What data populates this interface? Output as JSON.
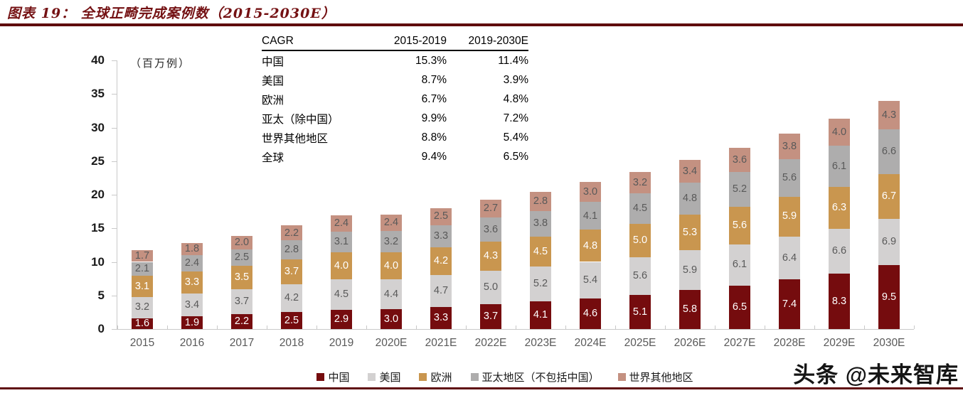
{
  "header": {
    "title": "图表 19：  全球正畸完成案例数（2015-2030E）",
    "accent_color": "#5f0b0d"
  },
  "chart_data": {
    "type": "bar",
    "stacked": true,
    "title": "全球正畸完成案例数（2015-2030E）",
    "unit_label": "（百万例）",
    "ylim": [
      0,
      40
    ],
    "yticks": [
      0,
      5,
      10,
      15,
      20,
      25,
      30,
      35,
      40
    ],
    "grid": false,
    "legend_position": "bottom",
    "categories": [
      "2015",
      "2016",
      "2017",
      "2018",
      "2019",
      "2020E",
      "2021E",
      "2022E",
      "2023E",
      "2024E",
      "2025E",
      "2026E",
      "2027E",
      "2028E",
      "2029E",
      "2030E"
    ],
    "series": [
      {
        "name": "中国",
        "color": "#750c0e",
        "label_color": "#ffffff",
        "values": [
          1.6,
          1.9,
          2.2,
          2.5,
          2.9,
          3.0,
          3.3,
          3.7,
          4.1,
          4.6,
          5.1,
          5.8,
          6.5,
          7.4,
          8.3,
          9.5
        ]
      },
      {
        "name": "美国",
        "color": "#d3d1d1",
        "label_color": "#595959",
        "values": [
          3.2,
          3.4,
          3.7,
          4.2,
          4.5,
          4.4,
          4.7,
          5.0,
          5.2,
          5.4,
          5.6,
          5.9,
          6.1,
          6.4,
          6.6,
          6.9
        ]
      },
      {
        "name": "欧洲",
        "color": "#c9964f",
        "label_color": "#ffffff",
        "values": [
          3.1,
          3.3,
          3.5,
          3.7,
          4.0,
          4.0,
          4.2,
          4.3,
          4.5,
          4.8,
          5.0,
          5.3,
          5.6,
          5.9,
          6.3,
          6.7
        ]
      },
      {
        "name": "亚太地区（不包括中国）",
        "color": "#aeadad",
        "label_color": "#595959",
        "values": [
          2.1,
          2.4,
          2.5,
          2.8,
          3.1,
          3.2,
          3.3,
          3.6,
          3.8,
          4.1,
          4.5,
          4.8,
          5.2,
          5.6,
          6.1,
          6.6
        ]
      },
      {
        "name": "世界其他地区",
        "color": "#c49181",
        "label_color": "#595959",
        "values": [
          1.7,
          1.8,
          2.0,
          2.2,
          2.4,
          2.4,
          2.5,
          2.7,
          2.8,
          3.0,
          3.2,
          3.4,
          3.6,
          3.8,
          4.0,
          4.3
        ]
      }
    ],
    "axis_color": "#c9c9c9"
  },
  "cagr_table": {
    "headers": [
      "CAGR",
      "2015-2019",
      "2019-2030E"
    ],
    "rows": [
      {
        "label": "中国",
        "v1": "15.3%",
        "v2": "11.4%"
      },
      {
        "label": "美国",
        "v1": "8.7%",
        "v2": "3.9%"
      },
      {
        "label": "欧洲",
        "v1": "6.7%",
        "v2": "4.8%"
      },
      {
        "label": "亚太（除中国）",
        "v1": "9.9%",
        "v2": "7.2%"
      },
      {
        "label": "世界其他地区",
        "v1": "8.8%",
        "v2": "5.4%"
      },
      {
        "label": "全球",
        "v1": "9.4%",
        "v2": "6.5%"
      }
    ]
  },
  "watermark": {
    "text": "头条 @未来智库"
  }
}
